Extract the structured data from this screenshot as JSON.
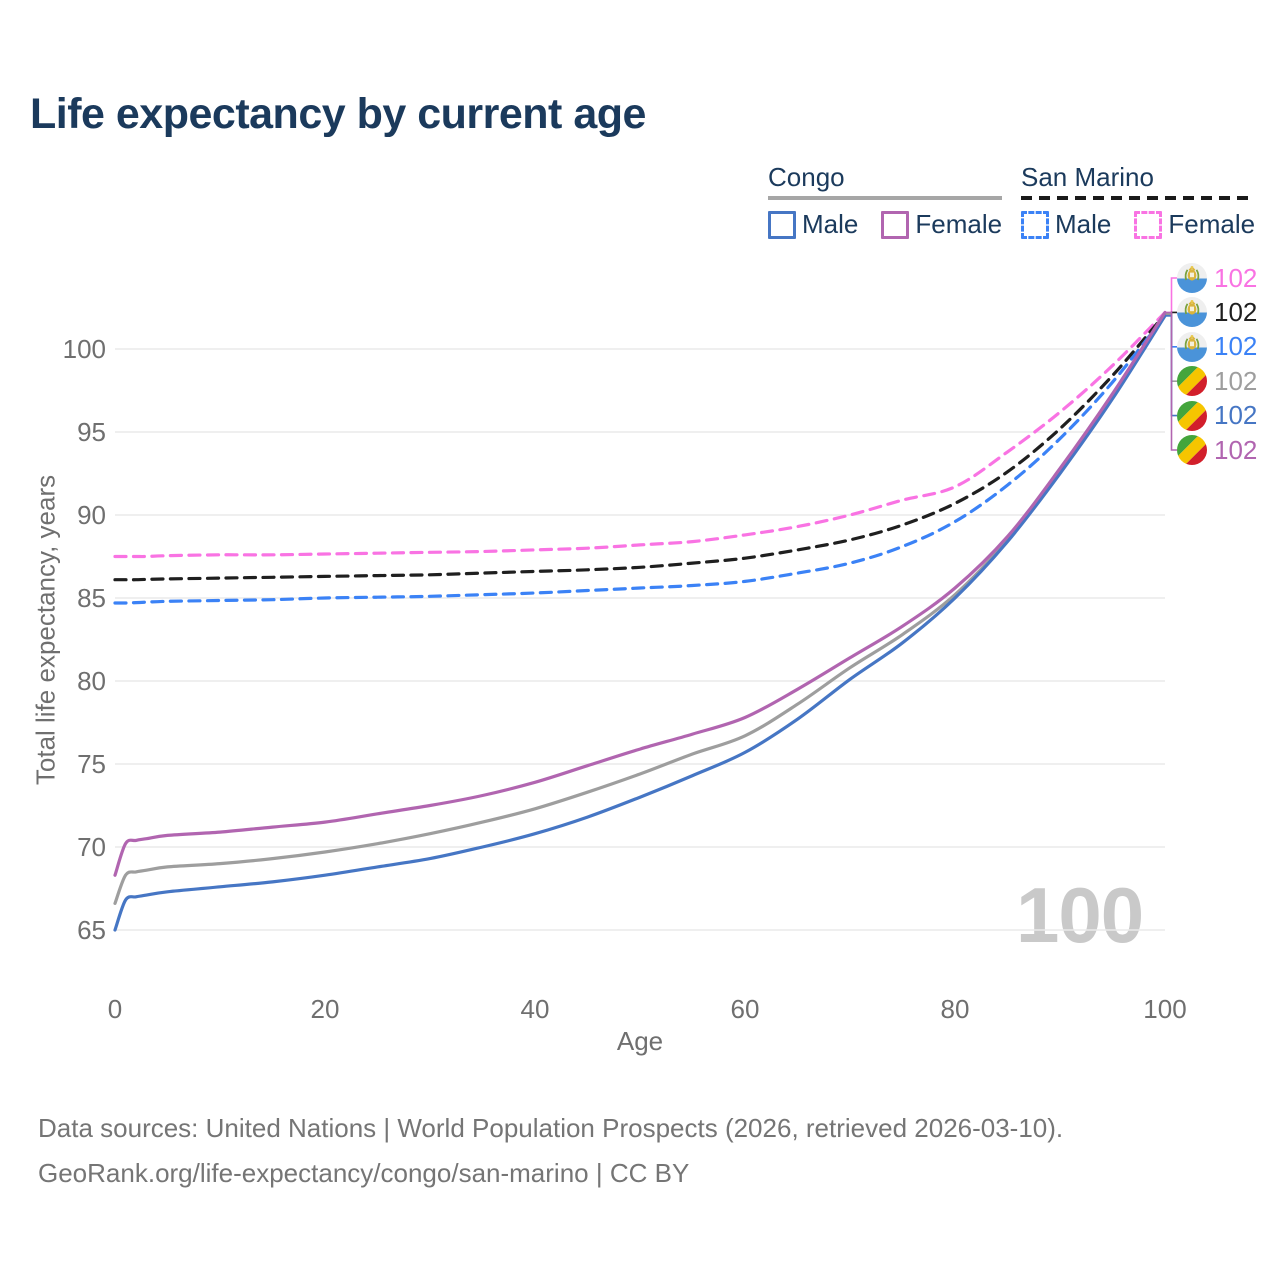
{
  "title": "Life expectancy by current age",
  "legend": {
    "groups": [
      {
        "label": "Congo",
        "line_style": "solid",
        "underline_color": "#a6a6a6",
        "items": [
          {
            "label": "Male",
            "color": "#4676c4"
          },
          {
            "label": "Female",
            "color": "#b165b0"
          }
        ]
      },
      {
        "label": "San Marino",
        "line_style": "dashed",
        "underline_color": "#1a1a1a",
        "items": [
          {
            "label": "Male",
            "color": "#3b82f6"
          },
          {
            "label": "Female",
            "color": "#f973e3"
          }
        ]
      }
    ]
  },
  "chart_data": {
    "type": "line",
    "title": "Life expectancy by current age",
    "xlabel": "Age",
    "ylabel": "Total life expectancy, years",
    "x_ticks": [
      0,
      20,
      40,
      60,
      80,
      100
    ],
    "y_ticks": [
      65,
      70,
      75,
      80,
      85,
      90,
      95,
      100
    ],
    "xlim": [
      0,
      100
    ],
    "ylim": [
      63.5,
      103.5
    ],
    "grid": "horizontal-only",
    "legend_position": "top-right",
    "watermark": "100",
    "ages": [
      0,
      1,
      2,
      3,
      5,
      10,
      15,
      20,
      25,
      30,
      35,
      40,
      45,
      50,
      55,
      60,
      65,
      70,
      75,
      80,
      85,
      90,
      95,
      100
    ],
    "series": [
      {
        "name": "San Marino Female",
        "country": "San Marino",
        "sex": "Female",
        "flag": "sanmarino",
        "color": "#f973e3",
        "dashed": true,
        "end_label": "102",
        "label_color": "#f973e3",
        "values": [
          87.5,
          87.5,
          87.5,
          87.5,
          87.55,
          87.6,
          87.6,
          87.65,
          87.7,
          87.75,
          87.8,
          87.9,
          88.0,
          88.2,
          88.4,
          88.8,
          89.3,
          90.0,
          90.9,
          91.7,
          93.8,
          96.2,
          99.0,
          102.2
        ]
      },
      {
        "name": "San Marino Both sexes",
        "country": "San Marino",
        "sex": "Both sexes",
        "flag": "sanmarino",
        "color": "#1f1f1f",
        "dashed": true,
        "end_label": "102",
        "label_color": "#1f1f1f",
        "values": [
          86.1,
          86.1,
          86.1,
          86.12,
          86.15,
          86.2,
          86.25,
          86.3,
          86.35,
          86.4,
          86.5,
          86.6,
          86.7,
          86.85,
          87.1,
          87.4,
          87.9,
          88.5,
          89.4,
          90.7,
          92.6,
          95.2,
          98.4,
          102.1
        ]
      },
      {
        "name": "San Marino Male",
        "country": "San Marino",
        "sex": "Male",
        "flag": "sanmarino",
        "color": "#3b82f6",
        "dashed": true,
        "end_label": "102",
        "label_color": "#3b82f6",
        "values": [
          84.7,
          84.7,
          84.72,
          84.75,
          84.8,
          84.85,
          84.9,
          85.0,
          85.05,
          85.1,
          85.2,
          85.3,
          85.45,
          85.6,
          85.75,
          86.0,
          86.5,
          87.1,
          88.1,
          89.6,
          91.8,
          94.6,
          98.0,
          102.0
        ]
      },
      {
        "name": "Congo Both sexes",
        "country": "Congo",
        "sex": "Both sexes",
        "flag": "congo",
        "color": "#9e9e9e",
        "dashed": false,
        "end_label": "102",
        "label_color": "#9e9e9e",
        "values": [
          66.6,
          68.3,
          68.5,
          68.6,
          68.8,
          69.0,
          69.3,
          69.7,
          70.2,
          70.8,
          71.5,
          72.3,
          73.3,
          74.4,
          75.6,
          76.7,
          78.6,
          80.8,
          82.8,
          85.2,
          88.5,
          92.6,
          97.1,
          102.1
        ]
      },
      {
        "name": "Congo Male",
        "country": "Congo",
        "sex": "Male",
        "flag": "congo",
        "color": "#4676c4",
        "dashed": false,
        "end_label": "102",
        "label_color": "#4676c4",
        "values": [
          65.0,
          66.8,
          67.0,
          67.1,
          67.3,
          67.6,
          67.9,
          68.3,
          68.8,
          69.3,
          70.0,
          70.8,
          71.8,
          73.0,
          74.3,
          75.7,
          77.7,
          80.1,
          82.3,
          85.0,
          88.4,
          92.5,
          97.0,
          102.0
        ]
      },
      {
        "name": "Congo Female",
        "country": "Congo",
        "sex": "Female",
        "flag": "congo",
        "color": "#b165b0",
        "dashed": false,
        "end_label": "102",
        "label_color": "#b165b0",
        "values": [
          68.3,
          70.2,
          70.4,
          70.5,
          70.7,
          70.9,
          71.2,
          71.5,
          72.0,
          72.5,
          73.1,
          73.9,
          74.9,
          75.9,
          76.8,
          77.8,
          79.5,
          81.4,
          83.3,
          85.6,
          88.7,
          92.8,
          97.3,
          102.2
        ]
      }
    ]
  },
  "footer": {
    "line1": "Data sources: United Nations | World Population Prospects (2026, retrieved 2026-03-10).",
    "line2": "GeoRank.org/life-expectancy/congo/san-marino | CC BY"
  }
}
